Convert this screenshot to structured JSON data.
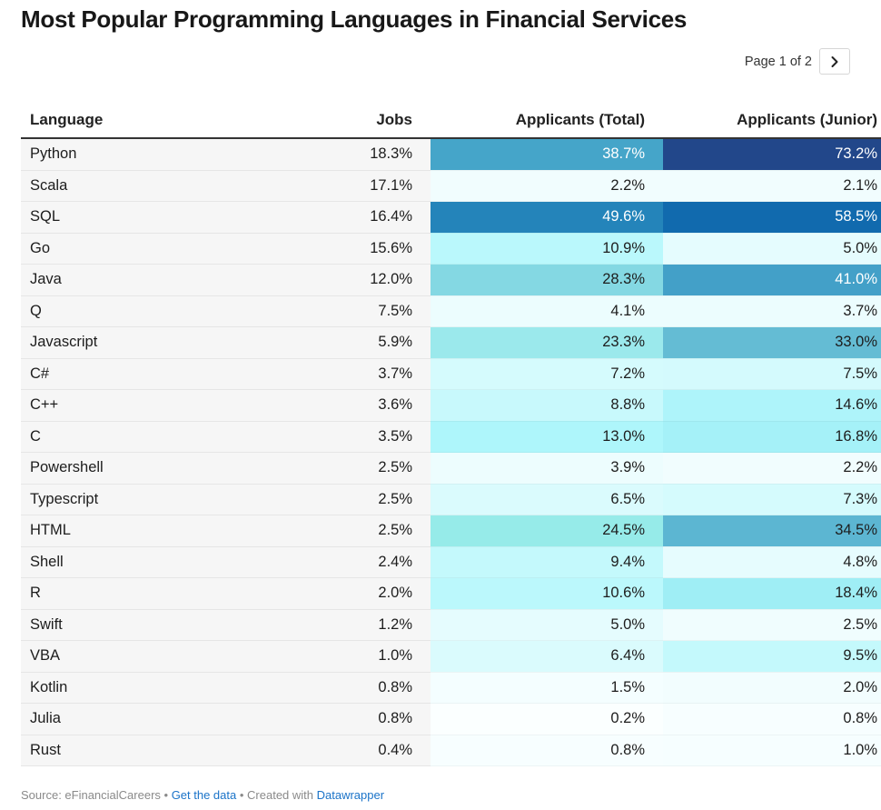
{
  "title": "Most Popular Programming Languages in Financial Services",
  "pager": {
    "text": "Page 1 of 2",
    "next_icon": "chevron-right-icon"
  },
  "footer": {
    "source": "Source: eFinancialCareers",
    "sep1": " • ",
    "get_data": "Get the data",
    "sep2": " • ",
    "created_with": "Created with ",
    "datawrapper": "Datawrapper"
  },
  "chart_data": {
    "type": "table",
    "columns": [
      "Language",
      "Jobs",
      "Applicants (Total)",
      "Applicants (Junior)"
    ],
    "rows": [
      {
        "language": "Python",
        "jobs": "18.3%",
        "total": "38.7%",
        "junior": "73.2%",
        "total_color": "#45a5c9",
        "junior_color": "#22478a"
      },
      {
        "language": "Scala",
        "jobs": "17.1%",
        "total": "2.2%",
        "junior": "2.1%",
        "total_color": "#f1fdfe",
        "junior_color": "#f1fdfe"
      },
      {
        "language": "SQL",
        "jobs": "16.4%",
        "total": "49.6%",
        "junior": "58.5%",
        "total_color": "#2484ba",
        "junior_color": "#116aae"
      },
      {
        "language": "Go",
        "jobs": "15.6%",
        "total": "10.9%",
        "junior": "5.0%",
        "total_color": "#baf8fc",
        "junior_color": "#e5fcfe"
      },
      {
        "language": "Java",
        "jobs": "12.0%",
        "total": "28.3%",
        "junior": "41.0%",
        "total_color": "#84d8e3",
        "junior_color": "#43a0c8"
      },
      {
        "language": "Q",
        "jobs": "7.5%",
        "total": "4.1%",
        "junior": "3.7%",
        "total_color": "#ecfdfe",
        "junior_color": "#ecfdfe"
      },
      {
        "language": "Javascript",
        "jobs": "5.9%",
        "total": "23.3%",
        "junior": "33.0%",
        "total_color": "#9be9ec",
        "junior_color": "#64bcd4"
      },
      {
        "language": "C#",
        "jobs": "3.7%",
        "total": "7.2%",
        "junior": "7.5%",
        "total_color": "#d5fbfd",
        "junior_color": "#d4fafd"
      },
      {
        "language": "C++",
        "jobs": "3.6%",
        "total": "8.8%",
        "junior": "14.6%",
        "total_color": "#c8f9fc",
        "junior_color": "#aef4fa"
      },
      {
        "language": "C",
        "jobs": "3.5%",
        "total": "13.0%",
        "junior": "16.8%",
        "total_color": "#aef6fb",
        "junior_color": "#a5f1f8"
      },
      {
        "language": "Powershell",
        "jobs": "2.5%",
        "total": "3.9%",
        "junior": "2.2%",
        "total_color": "#edfdfe",
        "junior_color": "#f1fdfe"
      },
      {
        "language": "Typescript",
        "jobs": "2.5%",
        "total": "6.5%",
        "junior": "7.3%",
        "total_color": "#dafbfd",
        "junior_color": "#d5fbfd"
      },
      {
        "language": "HTML",
        "jobs": "2.5%",
        "total": "24.5%",
        "junior": "34.5%",
        "total_color": "#96ebe9",
        "junior_color": "#5cb6d2"
      },
      {
        "language": "Shell",
        "jobs": "2.4%",
        "total": "9.4%",
        "junior": "4.8%",
        "total_color": "#c4f9fc",
        "junior_color": "#e6fcfe"
      },
      {
        "language": "R",
        "jobs": "2.0%",
        "total": "10.6%",
        "junior": "18.4%",
        "total_color": "#bbf8fc",
        "junior_color": "#9feef5"
      },
      {
        "language": "Swift",
        "jobs": "1.2%",
        "total": "5.0%",
        "junior": "2.5%",
        "total_color": "#e5fcfe",
        "junior_color": "#f0fdfe"
      },
      {
        "language": "VBA",
        "jobs": "1.0%",
        "total": "6.4%",
        "junior": "9.5%",
        "total_color": "#dafbfd",
        "junior_color": "#c4f9fc"
      },
      {
        "language": "Kotlin",
        "jobs": "0.8%",
        "total": "1.5%",
        "junior": "2.0%",
        "total_color": "#f4feff",
        "junior_color": "#f2fdfe"
      },
      {
        "language": "Julia",
        "jobs": "0.8%",
        "total": "0.2%",
        "junior": "0.8%",
        "total_color": "#fbffff",
        "junior_color": "#f7feff"
      },
      {
        "language": "Rust",
        "jobs": "0.4%",
        "total": "0.8%",
        "junior": "1.0%",
        "total_color": "#f7feff",
        "junior_color": "#f6feff"
      }
    ]
  }
}
